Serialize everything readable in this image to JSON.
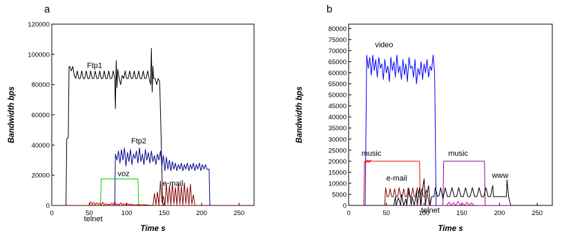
{
  "chart_data": [
    {
      "panel": "a",
      "type": "line",
      "xlabel": "Time s",
      "ylabel": "Bandwidth bps",
      "xlim": [
        0,
        270
      ],
      "ylim": [
        0,
        120000
      ],
      "xticks": [
        0,
        50,
        100,
        150,
        200,
        250
      ],
      "yticks": [
        0,
        20000,
        40000,
        60000,
        80000,
        100000,
        120000
      ],
      "grid": false,
      "legend": "none",
      "series": [
        {
          "name": "Ftp1",
          "color": "#000000",
          "x": [
            0,
            19,
            20,
            22,
            23,
            24,
            26,
            28,
            30,
            32,
            34,
            36,
            38,
            40,
            42,
            44,
            46,
            48,
            50,
            52,
            54,
            56,
            58,
            60,
            62,
            64,
            66,
            68,
            70,
            72,
            74,
            76,
            78,
            80,
            82,
            84,
            85,
            86,
            87,
            88,
            90,
            92,
            94,
            96,
            98,
            100,
            102,
            104,
            106,
            108,
            110,
            112,
            114,
            116,
            118,
            120,
            122,
            124,
            126,
            128,
            130,
            132,
            133,
            134,
            135,
            136,
            138,
            140,
            142,
            144,
            146,
            148,
            150,
            155,
            160
          ],
          "y": [
            0,
            0,
            44000,
            45000,
            92000,
            92000,
            89000,
            92000,
            86000,
            84000,
            89000,
            84000,
            84000,
            89000,
            84000,
            84000,
            89000,
            84000,
            84000,
            89000,
            84000,
            84000,
            89000,
            84000,
            84000,
            89000,
            84000,
            84000,
            89000,
            84000,
            84000,
            89000,
            84000,
            84000,
            89000,
            84000,
            64000,
            96000,
            78000,
            90000,
            84000,
            80000,
            86000,
            84000,
            89000,
            84000,
            84000,
            89000,
            84000,
            84000,
            89000,
            84000,
            84000,
            89000,
            84000,
            84000,
            89000,
            84000,
            84000,
            89000,
            84000,
            80000,
            104000,
            75000,
            92000,
            84000,
            84000,
            80000,
            84000,
            82000,
            45000,
            1000,
            0,
            0,
            0
          ]
        },
        {
          "name": "Ftp2",
          "color": "#00008b",
          "x": [
            0,
            84,
            85,
            87,
            89,
            91,
            93,
            95,
            97,
            99,
            101,
            103,
            105,
            107,
            109,
            111,
            113,
            115,
            117,
            119,
            121,
            123,
            125,
            127,
            129,
            131,
            133,
            135,
            137,
            139,
            141,
            143,
            145,
            147,
            149,
            151,
            153,
            155,
            157,
            159,
            161,
            163,
            165,
            167,
            169,
            171,
            173,
            175,
            177,
            179,
            181,
            183,
            185,
            187,
            189,
            191,
            193,
            195,
            197,
            199,
            201,
            203,
            205,
            207,
            209,
            210,
            211,
            270
          ],
          "y": [
            0,
            0,
            34000,
            30000,
            36000,
            28000,
            37000,
            30000,
            38000,
            26000,
            35000,
            29000,
            37000,
            27000,
            34000,
            31000,
            36000,
            28000,
            38000,
            29000,
            34000,
            27000,
            37000,
            30000,
            35000,
            28000,
            36000,
            29000,
            33000,
            27000,
            34000,
            30000,
            36000,
            26000,
            33000,
            23000,
            32000,
            24000,
            30000,
            23000,
            29000,
            24000,
            28000,
            23000,
            27000,
            24000,
            28000,
            23000,
            27000,
            24000,
            28000,
            23000,
            27000,
            24000,
            28000,
            23000,
            27000,
            24000,
            28000,
            23000,
            27000,
            24000,
            27000,
            24000,
            24000,
            24000,
            0,
            0
          ]
        },
        {
          "name": "voz",
          "color": "#00cc00",
          "x": [
            0,
            65,
            66,
            115,
            116,
            270
          ],
          "y": [
            0,
            0,
            17500,
            17500,
            0,
            0
          ]
        },
        {
          "name": "telnet",
          "color": "#cc0000",
          "x": [
            0,
            50,
            52,
            54,
            56,
            58,
            60,
            62,
            64,
            66,
            68,
            70,
            72,
            74,
            76,
            78,
            80,
            82,
            84,
            86,
            88,
            90,
            92,
            94,
            96,
            98,
            100,
            102,
            104,
            106,
            108,
            110,
            115,
            120,
            125,
            130,
            135,
            270
          ],
          "y": [
            0,
            0,
            2500,
            500,
            2000,
            300,
            1800,
            600,
            1500,
            200,
            2200,
            400,
            1200,
            300,
            800,
            200,
            1500,
            400,
            2500,
            300,
            1000,
            200,
            1800,
            400,
            1200,
            200,
            1500,
            500,
            1000,
            300,
            800,
            200,
            500,
            300,
            400,
            200,
            0,
            0
          ]
        },
        {
          "name": "e-mail",
          "color": "#800000",
          "x": [
            0,
            135,
            137,
            139,
            141,
            143,
            145,
            147,
            149,
            151,
            153,
            155,
            157,
            159,
            161,
            163,
            165,
            167,
            169,
            171,
            173,
            175,
            177,
            179,
            181,
            183,
            185,
            187,
            189,
            191,
            193,
            270
          ],
          "y": [
            0,
            0,
            8000,
            500,
            9000,
            300,
            16000,
            2000,
            6000,
            500,
            14000,
            1000,
            13000,
            500,
            15000,
            1000,
            12000,
            500,
            14000,
            800,
            13000,
            500,
            15000,
            1000,
            12000,
            500,
            14000,
            800,
            7000,
            0,
            0,
            0
          ]
        }
      ],
      "annotations": [
        {
          "text": "Ftp1",
          "x": 47,
          "y": 91000
        },
        {
          "text": "Ftp2",
          "x": 106,
          "y": 41000
        },
        {
          "text": "voz",
          "x": 88,
          "y": 19500
        },
        {
          "text": "e-mail",
          "x": 148,
          "y": 13000
        },
        {
          "text": "telnet",
          "x": 43,
          "y": -10500
        }
      ]
    },
    {
      "panel": "b",
      "type": "line",
      "xlabel": "Time s",
      "ylabel": "Bandwidth bps",
      "xlim": [
        0,
        270
      ],
      "ylim": [
        0,
        82000
      ],
      "xticks": [
        0,
        50,
        100,
        150,
        200,
        250
      ],
      "yticks": [
        0,
        5000,
        10000,
        15000,
        20000,
        25000,
        30000,
        35000,
        40000,
        45000,
        50000,
        55000,
        60000,
        65000,
        70000,
        75000,
        80000
      ],
      "grid": false,
      "legend": "none",
      "series": [
        {
          "name": "video",
          "color": "#0000ff",
          "x": [
            0,
            22,
            24,
            26,
            28,
            30,
            32,
            34,
            36,
            38,
            40,
            42,
            44,
            46,
            48,
            50,
            52,
            54,
            56,
            58,
            60,
            62,
            64,
            66,
            68,
            70,
            72,
            74,
            76,
            78,
            80,
            82,
            84,
            86,
            88,
            90,
            92,
            94,
            96,
            98,
            100,
            102,
            104,
            106,
            108,
            110,
            112,
            114,
            116,
            118,
            120,
            270
          ],
          "y": [
            0,
            0,
            68000,
            62000,
            67000,
            59000,
            68000,
            61000,
            66000,
            58000,
            67000,
            62000,
            64000,
            57000,
            66000,
            60000,
            63000,
            56000,
            67000,
            61000,
            65000,
            58000,
            68000,
            60000,
            63000,
            57000,
            66000,
            59000,
            64000,
            56000,
            67000,
            62000,
            63000,
            58000,
            66000,
            55000,
            62000,
            59000,
            65000,
            57000,
            64000,
            60000,
            66000,
            58000,
            63000,
            61000,
            68000,
            60000,
            0,
            0,
            0,
            0
          ]
        },
        {
          "name": "music",
          "color": "#ff0000",
          "x": [
            0,
            20,
            21,
            22,
            23,
            24,
            25,
            26,
            27,
            28,
            29,
            30,
            35,
            40,
            45,
            50,
            55,
            60,
            65,
            70,
            75,
            80,
            85,
            90,
            94,
            95,
            270
          ],
          "y": [
            0,
            0,
            20000,
            19500,
            20500,
            19500,
            20500,
            19500,
            20500,
            19500,
            20500,
            20000,
            20000,
            20000,
            20000,
            20000,
            20000,
            20000,
            20000,
            20000,
            20000,
            20000,
            20000,
            20000,
            20000,
            0,
            0
          ]
        },
        {
          "name": "music",
          "color": "#990099",
          "x": [
            0,
            125,
            126,
            130,
            135,
            140,
            145,
            150,
            155,
            160,
            165,
            170,
            175,
            180,
            181,
            270
          ],
          "y": [
            0,
            0,
            20000,
            20000,
            20000,
            20000,
            20000,
            20000,
            20000,
            20000,
            20000,
            20000,
            20000,
            20000,
            0,
            0
          ]
        },
        {
          "name": "e-mail",
          "color": "#800000",
          "x": [
            0,
            48,
            49,
            51,
            53,
            55,
            57,
            59,
            61,
            63,
            65,
            67,
            69,
            71,
            73,
            75,
            77,
            79,
            81,
            83,
            85,
            87,
            89,
            91,
            93,
            95,
            97,
            99,
            101,
            103,
            105,
            107,
            270
          ],
          "y": [
            0,
            0,
            8000,
            4000,
            4000,
            7500,
            4000,
            4000,
            7500,
            4000,
            4000,
            8000,
            4000,
            4000,
            7500,
            4000,
            4000,
            8000,
            4000,
            4000,
            8000,
            4000,
            4000,
            8000,
            4000,
            4000,
            7500,
            4000,
            4000,
            7000,
            4000,
            0,
            0
          ]
        },
        {
          "name": "telnet",
          "color": "#cc00cc",
          "x": [
            0,
            130,
            133,
            136,
            139,
            142,
            145,
            148,
            151,
            154,
            157,
            160,
            163,
            166,
            170,
            270
          ],
          "y": [
            0,
            0,
            1500,
            0,
            1200,
            0,
            1800,
            0,
            1000,
            0,
            1500,
            0,
            1200,
            0,
            0,
            0
          ]
        },
        {
          "name": "www",
          "color": "#000000",
          "x": [
            0,
            60,
            62,
            63,
            66,
            69,
            70,
            73,
            76,
            77,
            80,
            83,
            84,
            87,
            90,
            91,
            94,
            96,
            97,
            100,
            102,
            103,
            106,
            108,
            110,
            113,
            115,
            118,
            120,
            122,
            125,
            128,
            131,
            134,
            137,
            140,
            143,
            146,
            149,
            152,
            155,
            158,
            161,
            164,
            167,
            170,
            173,
            176,
            179,
            182,
            185,
            188,
            191,
            192,
            194,
            197,
            200,
            203,
            206,
            209,
            210,
            212,
            215,
            270
          ],
          "y": [
            0,
            0,
            4000,
            0,
            3500,
            0,
            5000,
            0,
            3000,
            0,
            7500,
            0,
            4000,
            0,
            6500,
            0,
            8000,
            0,
            4500,
            12000,
            0,
            3500,
            9000,
            0,
            4000,
            4000,
            8000,
            4000,
            4500,
            8000,
            3000,
            8000,
            4000,
            4000,
            8000,
            4000,
            4000,
            8000,
            4000,
            4000,
            8000,
            4000,
            4000,
            8000,
            4000,
            4000,
            8000,
            4000,
            4000,
            8000,
            4000,
            4000,
            9000,
            4000,
            4000,
            4000,
            4000,
            4000,
            4000,
            4000,
            11500,
            4000,
            0,
            0
          ]
        }
      ],
      "annotations": [
        {
          "text": "video",
          "x": 35,
          "y": 71500
        },
        {
          "text": "music",
          "x": 17,
          "y": 22500
        },
        {
          "text": "music",
          "x": 132,
          "y": 22500
        },
        {
          "text": "e-mail",
          "x": 50,
          "y": 11200
        },
        {
          "text": "telnet",
          "x": 96,
          "y": -3300
        },
        {
          "text": "www",
          "x": 190,
          "y": 12500
        }
      ]
    }
  ]
}
